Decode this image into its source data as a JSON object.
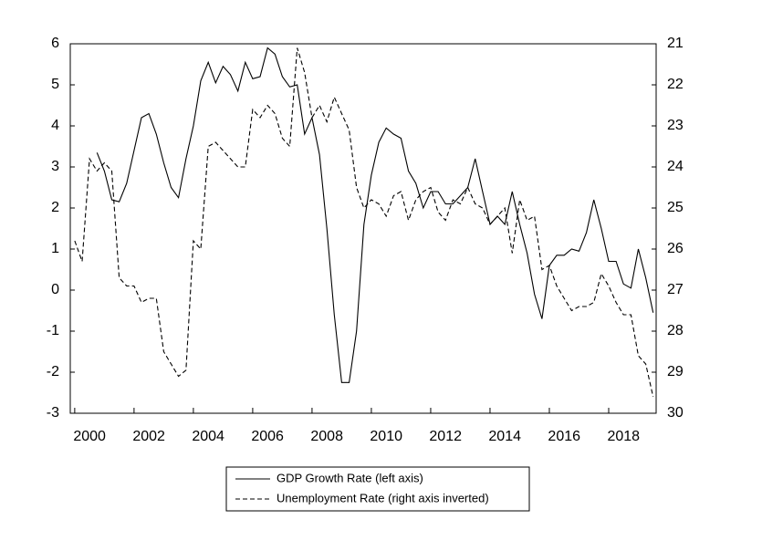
{
  "chart_data": {
    "type": "line",
    "x": [
      2000,
      2000.25,
      2000.5,
      2000.75,
      2001,
      2001.25,
      2001.5,
      2001.75,
      2002,
      2002.25,
      2002.5,
      2002.75,
      2003,
      2003.25,
      2003.5,
      2003.75,
      2004,
      2004.25,
      2004.5,
      2004.75,
      2005,
      2005.25,
      2005.5,
      2005.75,
      2006,
      2006.25,
      2006.5,
      2006.75,
      2007,
      2007.25,
      2007.5,
      2007.75,
      2008,
      2008.25,
      2008.5,
      2008.75,
      2009,
      2009.25,
      2009.5,
      2009.75,
      2010,
      2010.25,
      2010.5,
      2010.75,
      2011,
      2011.25,
      2011.5,
      2011.75,
      2012,
      2012.25,
      2012.5,
      2012.75,
      2013,
      2013.25,
      2013.5,
      2013.75,
      2014,
      2014.25,
      2014.5,
      2014.75,
      2015,
      2015.25,
      2015.5,
      2015.75,
      2016,
      2016.25,
      2016.5,
      2016.75,
      2017,
      2017.25,
      2017.5,
      2017.75,
      2018,
      2018.25,
      2018.5,
      2018.75,
      2019,
      2019.25,
      2019.5,
      2019.75
    ],
    "series": [
      {
        "name": "GDP Growth Rate (left axis)",
        "color": "#000000",
        "line_style": "solid",
        "axis": "y",
        "values": [
          null,
          null,
          null,
          3.35,
          2.9,
          2.2,
          2.15,
          2.6,
          3.4,
          4.2,
          4.3,
          3.8,
          3.1,
          2.5,
          2.25,
          3.2,
          4.0,
          5.1,
          5.55,
          5.05,
          5.45,
          5.25,
          4.85,
          5.55,
          5.15,
          5.2,
          5.9,
          5.75,
          5.2,
          4.95,
          5.0,
          3.8,
          4.2,
          3.3,
          1.5,
          -0.6,
          -2.25,
          -2.25,
          -1.0,
          1.6,
          2.8,
          3.6,
          3.95,
          3.8,
          3.7,
          2.9,
          2.6,
          2.0,
          2.4,
          2.4,
          2.1,
          2.1,
          2.3,
          2.5,
          3.2,
          2.4,
          1.6,
          1.8,
          1.6,
          2.4,
          1.6,
          0.9,
          -0.1,
          -0.7,
          0.6,
          0.85,
          0.85,
          1.0,
          0.95,
          1.4,
          2.2,
          1.5,
          0.7,
          0.7,
          0.15,
          0.05,
          1.0,
          0.3,
          -0.55,
          null
        ]
      },
      {
        "name": "Unemployment Rate (right axis inverted)",
        "color": "#000000",
        "line_style": "dashed",
        "axis": "y2",
        "values": [
          25.8,
          26.3,
          23.8,
          24.1,
          23.9,
          24.1,
          26.7,
          26.9,
          26.9,
          27.3,
          27.2,
          27.2,
          28.5,
          28.8,
          29.1,
          28.95,
          25.8,
          26.0,
          23.5,
          23.4,
          23.6,
          23.8,
          24.0,
          24.0,
          22.6,
          22.8,
          22.5,
          22.7,
          23.3,
          23.5,
          21.1,
          21.7,
          22.8,
          22.5,
          22.9,
          22.3,
          22.7,
          23.1,
          24.5,
          25.0,
          24.8,
          24.9,
          25.2,
          24.7,
          24.6,
          25.3,
          24.8,
          24.6,
          24.5,
          25.1,
          25.3,
          24.8,
          24.9,
          24.5,
          24.9,
          25.0,
          25.4,
          25.2,
          25.0,
          26.1,
          24.8,
          25.3,
          25.2,
          26.5,
          26.4,
          26.9,
          27.2,
          27.5,
          27.4,
          27.4,
          27.3,
          26.6,
          26.9,
          27.3,
          27.6,
          27.6,
          28.6,
          28.8,
          29.6,
          null
        ]
      }
    ],
    "xlim": [
      1999.85,
      2019.6
    ],
    "xticks": [
      2000,
      2002,
      2004,
      2006,
      2008,
      2010,
      2012,
      2014,
      2016,
      2018
    ],
    "ylim": [
      -3,
      6
    ],
    "yticks": [
      -3,
      -2,
      -1,
      0,
      1,
      2,
      3,
      4,
      5,
      6
    ],
    "y2lim": [
      21,
      30
    ],
    "y2ticks": [
      21,
      22,
      23,
      24,
      25,
      26,
      27,
      28,
      29,
      30
    ],
    "y2_inverted": true,
    "legend": "bottom"
  }
}
